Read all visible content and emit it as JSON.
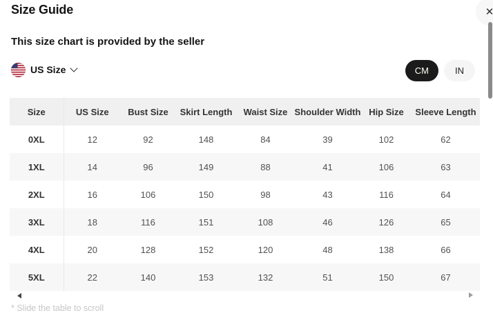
{
  "modal": {
    "title": "Size Guide",
    "close_label": "✕",
    "seller_note": "This size chart is provided by the seller",
    "region": {
      "label": "US Size",
      "flag": "us-flag"
    },
    "units": {
      "options": [
        "CM",
        "IN"
      ],
      "selected": "CM"
    },
    "scroll_hint": "* Slide the table to scroll"
  },
  "table": {
    "headers": [
      "Size",
      "US Size",
      "Bust Size",
      "Skirt Length",
      "Waist Size",
      "Shoulder Width",
      "Hip Size",
      "Sleeve Length"
    ],
    "rows": [
      {
        "size": "0XL",
        "values": [
          12,
          92,
          148,
          84,
          39,
          102,
          62
        ]
      },
      {
        "size": "1XL",
        "values": [
          14,
          96,
          149,
          88,
          41,
          106,
          63
        ]
      },
      {
        "size": "2XL",
        "values": [
          16,
          106,
          150,
          98,
          43,
          116,
          64
        ]
      },
      {
        "size": "3XL",
        "values": [
          18,
          116,
          151,
          108,
          46,
          126,
          65
        ]
      },
      {
        "size": "4XL",
        "values": [
          20,
          128,
          152,
          120,
          48,
          138,
          66
        ]
      },
      {
        "size": "5XL",
        "values": [
          22,
          140,
          153,
          132,
          51,
          150,
          67
        ]
      }
    ]
  },
  "colors": {
    "accent_dark": "#1b1b1b",
    "header_bg": "#f0f0f1",
    "alt_row_bg": "#f7f7f8",
    "muted_text": "#c6c6c6"
  }
}
